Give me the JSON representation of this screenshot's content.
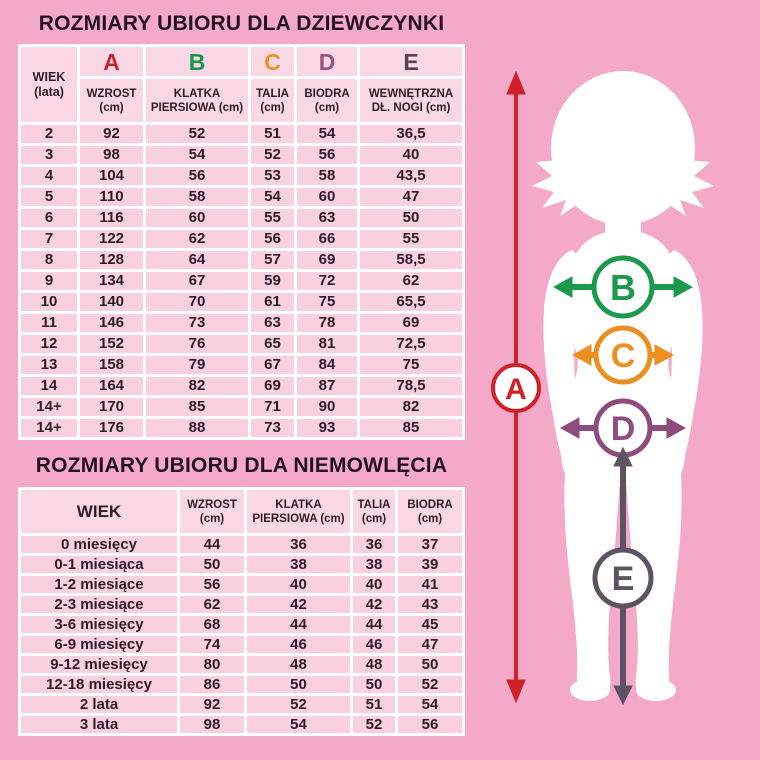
{
  "page": {
    "background_color": "#f4a9c8",
    "cell_color": "#f8d0e0",
    "header_cell_color": "#fad7e4",
    "grid_color": "#ffffff",
    "text_color": "#2e1b29",
    "silhouette_color": "#ffffff"
  },
  "chart_data": [
    {
      "type": "table",
      "title": "ROZMIARY UBIORU DLA DZIEWCZYNKI",
      "corner_header": [
        "WIEK",
        "(lata)"
      ],
      "letter_row": [
        {
          "label": "A",
          "color": "#c8232b"
        },
        {
          "label": "B",
          "color": "#15964a"
        },
        {
          "label": "C",
          "color": "#e8921f"
        },
        {
          "label": "D",
          "color": "#9b5183"
        },
        {
          "label": "E",
          "color": "#554353"
        }
      ],
      "column_headers": [
        [
          "WZROST",
          "(cm)"
        ],
        [
          "KLATKA",
          "PIERSIOWA (cm)"
        ],
        [
          "TALIA",
          "(cm)"
        ],
        [
          "BIODRA",
          "(cm)"
        ],
        [
          "WEWNĘTRZNA",
          "DŁ. NOGI (cm)"
        ]
      ],
      "rows": [
        [
          "2",
          "92",
          "52",
          "51",
          "54",
          "36,5"
        ],
        [
          "3",
          "98",
          "54",
          "52",
          "56",
          "40"
        ],
        [
          "4",
          "104",
          "56",
          "53",
          "58",
          "43,5"
        ],
        [
          "5",
          "110",
          "58",
          "54",
          "60",
          "47"
        ],
        [
          "6",
          "116",
          "60",
          "55",
          "63",
          "50"
        ],
        [
          "7",
          "122",
          "62",
          "56",
          "66",
          "55"
        ],
        [
          "8",
          "128",
          "64",
          "57",
          "69",
          "58,5"
        ],
        [
          "9",
          "134",
          "67",
          "59",
          "72",
          "62"
        ],
        [
          "10",
          "140",
          "70",
          "61",
          "75",
          "65,5"
        ],
        [
          "11",
          "146",
          "73",
          "63",
          "78",
          "69"
        ],
        [
          "12",
          "152",
          "76",
          "65",
          "81",
          "72,5"
        ],
        [
          "13",
          "158",
          "79",
          "67",
          "84",
          "75"
        ],
        [
          "14",
          "164",
          "82",
          "69",
          "87",
          "78,5"
        ],
        [
          "14+",
          "170",
          "85",
          "71",
          "90",
          "82"
        ],
        [
          "14+",
          "176",
          "88",
          "73",
          "93",
          "85"
        ]
      ]
    },
    {
      "type": "table",
      "title": "ROZMIARY UBIORU DLA NIEMOWLĘCIA",
      "column_headers": [
        [
          "WIEK"
        ],
        [
          "WZROST",
          "(cm)"
        ],
        [
          "KLATKA",
          "PIERSIOWA (cm)"
        ],
        [
          "TALIA",
          "(cm)"
        ],
        [
          "BIODRA",
          "(cm)"
        ]
      ],
      "rows": [
        [
          "0 miesięcy",
          "44",
          "36",
          "36",
          "37"
        ],
        [
          "0-1 miesiąca",
          "50",
          "38",
          "38",
          "39"
        ],
        [
          "1-2 miesiące",
          "56",
          "40",
          "40",
          "41"
        ],
        [
          "2-3 miesiące",
          "62",
          "42",
          "42",
          "43"
        ],
        [
          "3-6 miesięcy",
          "68",
          "44",
          "44",
          "45"
        ],
        [
          "6-9 miesięcy",
          "74",
          "46",
          "46",
          "47"
        ],
        [
          "9-12 miesięcy",
          "80",
          "48",
          "48",
          "50"
        ],
        [
          "12-18 miesięcy",
          "86",
          "50",
          "50",
          "52"
        ],
        [
          "2 lata",
          "92",
          "52",
          "51",
          "54"
        ],
        [
          "3 lata",
          "98",
          "54",
          "52",
          "56"
        ]
      ]
    }
  ],
  "figure": {
    "labels": [
      {
        "label": "A",
        "color": "#d0202a"
      },
      {
        "label": "B",
        "color": "#1b9a4d"
      },
      {
        "label": "C",
        "color": "#ec8f21"
      },
      {
        "label": "D",
        "color": "#8e4b7d"
      },
      {
        "label": "E",
        "color": "#5d5361"
      }
    ]
  }
}
